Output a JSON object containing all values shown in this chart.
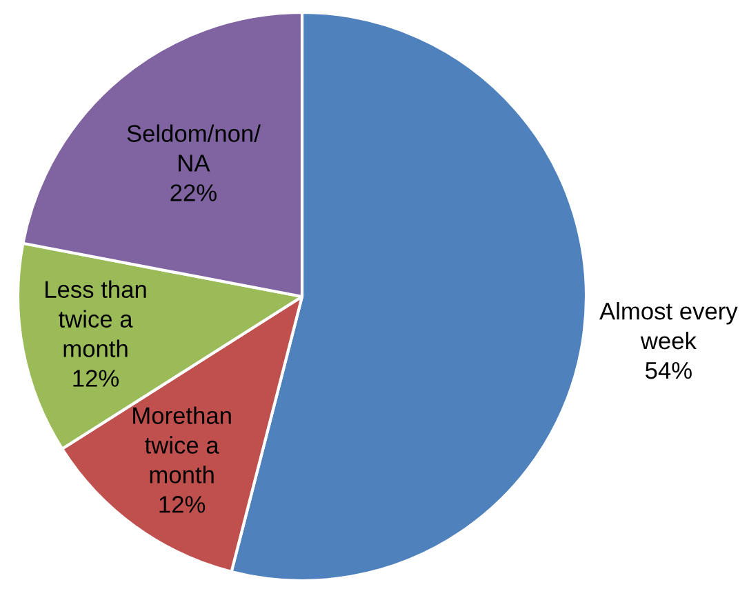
{
  "chart_data": {
    "type": "pie",
    "categories": [
      "Almost every\nweek",
      "Morethan\ntwice a\nmonth",
      "Less than\ntwice a\nmonth",
      "Seldom/non/\nNA"
    ],
    "values": [
      54,
      12,
      12,
      22
    ],
    "value_labels": [
      "54%",
      "12%",
      "12%",
      "22%"
    ],
    "colors": [
      "#4f81bd",
      "#c0504d",
      "#9bbb59",
      "#8064a2"
    ]
  }
}
